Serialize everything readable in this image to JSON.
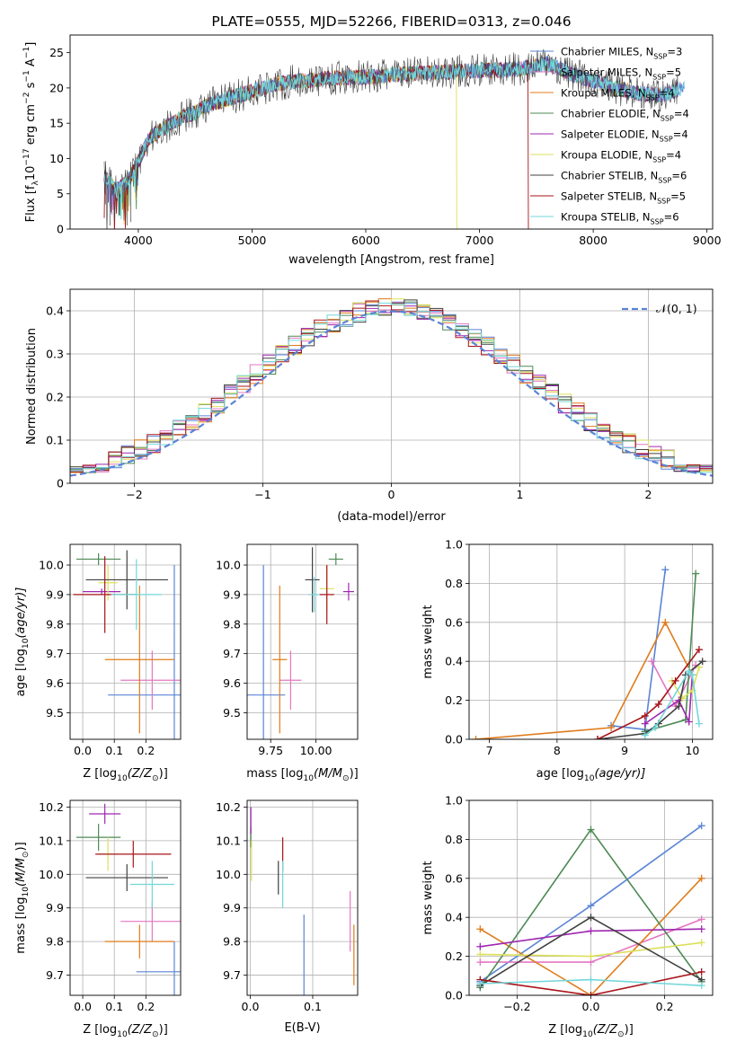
{
  "colors": {
    "Chabrier MILES": "#5b84d6",
    "Salpeter MILES": "#e377c2",
    "Kroupa MILES": "#e07b1a",
    "Chabrier ELODIE": "#4d8a55",
    "Salpeter ELODIE": "#9f27b0",
    "Kroupa ELODIE": "#dbe05a",
    "Chabrier STELIB": "#404040",
    "Salpeter STELIB": "#a8141a",
    "Kroupa STELIB": "#72d7d9"
  },
  "chart_data": [
    {
      "id": "spectrum",
      "type": "line",
      "title": "PLATE=0555, MJD=52266, FIBERID=0313, z=0.046",
      "xlabel": "wavelength [Angstrom, rest frame]",
      "ylabel_main": "Flux [f",
      "ylabel_sub": "λ",
      "ylabel_mid": "10",
      "ylabel_exp": "−17",
      "ylabel_rest": " erg cm",
      "ylabel_exp2": "−2",
      "ylabel_rest2": " s",
      "ylabel_exp3": "−1",
      "ylabel_rest3": " A",
      "ylabel_exp4": "−1",
      "ylabel_end": "]",
      "xlim": [
        3400,
        9050
      ],
      "ylim": [
        0,
        27.5
      ],
      "xticks": [
        4000,
        5000,
        6000,
        7000,
        8000,
        9000
      ],
      "yticks": [
        0,
        5,
        10,
        15,
        20,
        25
      ],
      "legend_position": "top-right",
      "legend": [
        {
          "name": "Chabrier MILES",
          "nssp": "3"
        },
        {
          "name": "Salpeter MILES",
          "nssp": "5"
        },
        {
          "name": "Kroupa MILES",
          "nssp": "4"
        },
        {
          "name": "Chabrier ELODIE",
          "nssp": "4"
        },
        {
          "name": "Salpeter ELODIE",
          "nssp": "4"
        },
        {
          "name": "Kroupa ELODIE",
          "nssp": "4"
        },
        {
          "name": "Chabrier STELIB",
          "nssp": "6"
        },
        {
          "name": "Salpeter STELIB",
          "nssp": "5"
        },
        {
          "name": "Kroupa STELIB",
          "nssp": "6"
        }
      ],
      "nssp_label": "N",
      "nssp_sub": "SSP",
      "continuum": {
        "x": [
          3700,
          3800,
          3900,
          4000,
          4100,
          4200,
          4300,
          4400,
          4500,
          4600,
          4700,
          4800,
          4900,
          5000,
          5200,
          5400,
          5600,
          5800,
          6000,
          6200,
          6400,
          6600,
          6800,
          7000,
          7200,
          7400,
          7600,
          7800,
          8000,
          8200,
          8400,
          8600,
          8800
        ],
        "y": [
          7.5,
          5.5,
          6.5,
          9.5,
          13,
          14,
          15,
          16,
          16.5,
          17.5,
          18,
          18.5,
          19,
          19.5,
          20.5,
          21,
          21.2,
          21.5,
          21.5,
          21.8,
          22,
          22.2,
          22.3,
          22.5,
          22.5,
          22.8,
          23.5,
          22,
          21,
          20,
          19.2,
          19,
          20
        ]
      },
      "dropouts": [
        {
          "series": "Kroupa ELODIE",
          "x": 6800,
          "from": 22.5,
          "to": 0,
          "endx": 6800
        },
        {
          "series": "Salpeter STELIB",
          "x": 7430,
          "from": 22.5,
          "to": 0,
          "endx": 7430
        }
      ],
      "low_dips": [
        {
          "x": 3710,
          "y": 3.5
        },
        {
          "x": 3750,
          "y": 0.5
        },
        {
          "x": 3830,
          "y": 2
        },
        {
          "x": 3900,
          "y": 0.5
        },
        {
          "x": 3935,
          "y": 1
        }
      ],
      "series_end": {
        "Salpeter STELIB": 7430,
        "Kroupa ELODIE": 6800,
        "Chabrier MILES": 8800,
        "Kroupa STELIB": 8800,
        "Salpeter MILES": 8800
      }
    },
    {
      "id": "residuals",
      "type": "histogram",
      "xlabel": "(data-model)/error",
      "ylabel": "Normed distribution",
      "xlim": [
        -2.5,
        2.5
      ],
      "ylim": [
        0,
        0.45
      ],
      "xticks": [
        -2,
        -1,
        0,
        1,
        2
      ],
      "yticks": [
        0,
        0.1,
        0.2,
        0.3,
        0.4
      ],
      "legend": "𝒩(0, 1)",
      "legend_position": "top-right",
      "bin_width": 0.1,
      "bin_start": -2.5
    },
    {
      "id": "age-vs-z",
      "type": "errorbar",
      "xlabel": "Z [log",
      "xlabel_sub": "10",
      "xlabel_mid": "(Z/Z",
      "xlabel_sub2": "⊙",
      "xlabel_end": ")]",
      "ylabel": "age  [log",
      "ylabel_sub": "10",
      "ylabel_end": "(age/yr)]",
      "xlim": [
        -0.04,
        0.31
      ],
      "ylim": [
        9.41,
        10.07
      ],
      "xticks": [
        0.0,
        0.1,
        0.2
      ],
      "xticklabels": [
        "0.0",
        "0.1",
        "0.2"
      ],
      "yticks": [
        9.5,
        9.6,
        9.7,
        9.8,
        9.9,
        10.0
      ],
      "yticklabels": [
        "9.5",
        "9.6",
        "9.7",
        "9.8",
        "9.9",
        "10.0"
      ],
      "points": [
        {
          "series": "Chabrier MILES",
          "x": 0.29,
          "y": 9.56,
          "xerr": 0.21,
          "yerr": 0.44
        },
        {
          "series": "Salpeter MILES",
          "x": 0.22,
          "y": 9.61,
          "xerr": 0.1,
          "yerr": 0.1
        },
        {
          "series": "Kroupa MILES",
          "x": 0.18,
          "y": 9.68,
          "xerr": 0.11,
          "yerr": 0.25
        },
        {
          "series": "Chabrier ELODIE",
          "x": 0.05,
          "y": 10.02,
          "xerr": 0.07,
          "yerr": 0.02
        },
        {
          "series": "Salpeter ELODIE",
          "x": 0.06,
          "y": 9.91,
          "xerr": 0.06,
          "yerr": 0.01
        },
        {
          "series": "Kroupa ELODIE",
          "x": 0.08,
          "y": 9.94,
          "xerr": 0.03,
          "yerr": 0.06
        },
        {
          "series": "Chabrier STELIB",
          "x": 0.14,
          "y": 9.95,
          "xerr": 0.13,
          "yerr": 0.1
        },
        {
          "series": "Salpeter STELIB",
          "x": 0.07,
          "y": 9.9,
          "xerr": 0.1,
          "yerr": 0.13
        },
        {
          "series": "Kroupa STELIB",
          "x": 0.17,
          "y": 9.9,
          "xerr": 0.08,
          "yerr": 0.12
        }
      ]
    },
    {
      "id": "age-vs-mass",
      "type": "errorbar",
      "xlabel": "mass [log",
      "xlabel_sub": "10",
      "xlabel_mid": "(M/M",
      "xlabel_sub2": "⊙",
      "xlabel_end": ")]",
      "xlim": [
        9.62,
        10.23
      ],
      "ylim": [
        9.41,
        10.07
      ],
      "xticks": [
        9.75,
        10.0
      ],
      "xticklabels": [
        "9.75",
        "10.00"
      ],
      "yticks": [
        9.5,
        9.6,
        9.7,
        9.8,
        9.9,
        10.0
      ],
      "yticklabels": [
        "9.5",
        "9.6",
        "9.7",
        "9.8",
        "9.9",
        "10.0"
      ],
      "points": [
        {
          "series": "Chabrier MILES",
          "x": 9.71,
          "y": 9.56,
          "xerr": 0.12,
          "yerr": 0.44
        },
        {
          "series": "Salpeter MILES",
          "x": 9.86,
          "y": 9.61,
          "xerr": 0.06,
          "yerr": 0.1
        },
        {
          "series": "Kroupa MILES",
          "x": 9.8,
          "y": 9.68,
          "xerr": 0.04,
          "yerr": 0.25
        },
        {
          "series": "Chabrier ELODIE",
          "x": 10.11,
          "y": 10.02,
          "xerr": 0.04,
          "yerr": 0.02
        },
        {
          "series": "Salpeter ELODIE",
          "x": 10.18,
          "y": 9.91,
          "xerr": 0.03,
          "yerr": 0.03
        },
        {
          "series": "Kroupa ELODIE",
          "x": 10.06,
          "y": 9.92,
          "xerr": 0.04,
          "yerr": 0.08
        },
        {
          "series": "Chabrier STELIB",
          "x": 9.98,
          "y": 9.95,
          "xerr": 0.04,
          "yerr": 0.11
        },
        {
          "series": "Salpeter STELIB",
          "x": 10.06,
          "y": 9.9,
          "xerr": 0.04,
          "yerr": 0.1
        },
        {
          "series": "Kroupa STELIB",
          "x": 9.99,
          "y": 9.9,
          "xerr": 0.03,
          "yerr": 0.06
        }
      ]
    },
    {
      "id": "mass-weight-vs-age",
      "type": "line",
      "xlabel": "age  [log",
      "xlabel_sub": "10",
      "xlabel_end": "(age/yr)]",
      "ylabel": "mass weight",
      "xlim": [
        6.7,
        10.3
      ],
      "ylim": [
        0,
        1
      ],
      "xticks": [
        7,
        8,
        9,
        10
      ],
      "xticklabels": [
        "7",
        "8",
        "9",
        "10"
      ],
      "yticks": [
        0,
        0.2,
        0.4,
        0.6,
        0.8,
        1.0
      ],
      "yticklabels": [
        "0.0",
        "0.2",
        "0.4",
        "0.6",
        "0.8",
        "1.0"
      ],
      "series": [
        {
          "name": "Chabrier MILES",
          "x": [
            8.8,
            9.3,
            9.6
          ],
          "y": [
            0.07,
            0.05,
            0.87
          ]
        },
        {
          "name": "Salpeter MILES",
          "x": [
            9.4,
            9.75,
            10.05
          ],
          "y": [
            0.4,
            0.17,
            0.38
          ]
        },
        {
          "name": "Kroupa MILES",
          "x": [
            6.8,
            8.8,
            9.6,
            10.0
          ],
          "y": [
            0.0,
            0.06,
            0.6,
            0.33
          ]
        },
        {
          "name": "Chabrier ELODIE",
          "x": [
            9.3,
            9.9,
            10.05
          ],
          "y": [
            0.04,
            0.1,
            0.85
          ]
        },
        {
          "name": "Salpeter ELODIE",
          "x": [
            9.3,
            9.8,
            9.95,
            10.0
          ],
          "y": [
            0.08,
            0.2,
            0.09,
            0.33
          ]
        },
        {
          "name": "Kroupa ELODIE",
          "x": [
            9.7,
            9.85,
            10.0,
            10.1
          ],
          "y": [
            0.3,
            0.21,
            0.25,
            0.37
          ]
        },
        {
          "name": "Chabrier STELIB",
          "x": [
            8.6,
            9.3,
            9.5,
            9.8,
            9.9,
            10.15
          ],
          "y": [
            0.0,
            0.03,
            0.08,
            0.17,
            0.33,
            0.4
          ]
        },
        {
          "name": "Salpeter STELIB",
          "x": [
            8.6,
            9.3,
            9.5,
            9.75,
            10.1
          ],
          "y": [
            0.0,
            0.12,
            0.18,
            0.3,
            0.46
          ]
        },
        {
          "name": "Kroupa STELIB",
          "x": [
            9.3,
            9.45,
            9.95,
            10.0,
            10.1
          ],
          "y": [
            0.02,
            0.06,
            0.35,
            0.33,
            0.08
          ]
        }
      ]
    },
    {
      "id": "mass-vs-z",
      "type": "errorbar",
      "xlabel": "Z [log",
      "xlabel_sub": "10",
      "xlabel_mid": "(Z/Z",
      "xlabel_sub2": "⊙",
      "xlabel_end": ")]",
      "ylabel": "mass [log",
      "ylabel_sub": "10",
      "ylabel_mid": "(M/M",
      "ylabel_sub2": "⊙",
      "ylabel_end": ")]",
      "xlim": [
        -0.04,
        0.31
      ],
      "ylim": [
        9.64,
        10.22
      ],
      "xticks": [
        0.0,
        0.1,
        0.2
      ],
      "xticklabels": [
        "0.0",
        "0.1",
        "0.2"
      ],
      "yticks": [
        9.7,
        9.8,
        9.9,
        10.0,
        10.1,
        10.2
      ],
      "yticklabels": [
        "9.7",
        "9.8",
        "9.9",
        "10.0",
        "10.1",
        "10.2"
      ],
      "points": [
        {
          "series": "Chabrier MILES",
          "x": 0.29,
          "y": 9.71,
          "xerr": 0.12,
          "yerr": 0.09
        },
        {
          "series": "Salpeter MILES",
          "x": 0.22,
          "y": 9.86,
          "xerr": 0.1,
          "yerr": 0.06
        },
        {
          "series": "Kroupa MILES",
          "x": 0.18,
          "y": 9.8,
          "xerr": 0.11,
          "yerr": 0.05
        },
        {
          "series": "Chabrier ELODIE",
          "x": 0.05,
          "y": 10.11,
          "xerr": 0.07,
          "yerr": 0.04
        },
        {
          "series": "Salpeter ELODIE",
          "x": 0.07,
          "y": 10.18,
          "xerr": 0.05,
          "yerr": 0.03
        },
        {
          "series": "Kroupa ELODIE",
          "x": 0.08,
          "y": 10.06,
          "xerr": 0.03,
          "yerr": 0.05
        },
        {
          "series": "Chabrier STELIB",
          "x": 0.14,
          "y": 9.99,
          "xerr": 0.13,
          "yerr": 0.04
        },
        {
          "series": "Salpeter STELIB",
          "x": 0.16,
          "y": 10.06,
          "xerr": 0.12,
          "yerr": 0.04
        },
        {
          "series": "Kroupa STELIB",
          "x": 0.22,
          "y": 9.97,
          "xerr": 0.07,
          "yerr": 0.07
        }
      ]
    },
    {
      "id": "mass-vs-ebv",
      "type": "errorbar",
      "xlabel": "E(B-V)",
      "xlim": [
        -0.005,
        0.172
      ],
      "ylim": [
        9.64,
        10.22
      ],
      "xticks": [
        0.0,
        0.1
      ],
      "xticklabels": [
        "0.0",
        "0.1"
      ],
      "yticks": [
        9.7,
        9.8,
        9.9,
        10.0,
        10.1,
        10.2
      ],
      "yticklabels": [
        "9.7",
        "9.8",
        "9.9",
        "10.0",
        "10.1",
        "10.2"
      ],
      "points": [
        {
          "series": "Chabrier MILES",
          "x": 0.086,
          "y": 9.75,
          "xerr": 0.0,
          "yerr": 0.13
        },
        {
          "series": "Salpeter MILES",
          "x": 0.16,
          "y": 9.86,
          "xerr": 0.0,
          "yerr": 0.09
        },
        {
          "series": "Kroupa MILES",
          "x": 0.166,
          "y": 9.76,
          "xerr": 0.0,
          "yerr": 0.09
        },
        {
          "series": "Chabrier ELODIE",
          "x": 0.001,
          "y": 10.11,
          "xerr": 0.0,
          "yerr": 0.03
        },
        {
          "series": "Salpeter ELODIE",
          "x": 0.001,
          "y": 10.16,
          "xerr": 0.0,
          "yerr": 0.04
        },
        {
          "series": "Kroupa ELODIE",
          "x": 0.002,
          "y": 10.04,
          "xerr": 0.0,
          "yerr": 0.06
        },
        {
          "series": "Chabrier STELIB",
          "x": 0.045,
          "y": 9.99,
          "xerr": 0.0,
          "yerr": 0.05
        },
        {
          "series": "Salpeter STELIB",
          "x": 0.052,
          "y": 10.06,
          "xerr": 0.0,
          "yerr": 0.05
        },
        {
          "series": "Kroupa STELIB",
          "x": 0.052,
          "y": 9.97,
          "xerr": 0.0,
          "yerr": 0.07
        }
      ]
    },
    {
      "id": "mass-weight-vs-z",
      "type": "line",
      "xlabel": "Z [log",
      "xlabel_sub": "10",
      "xlabel_mid": "(Z/Z",
      "xlabel_sub2": "⊙",
      "xlabel_end": ")]",
      "ylabel": "mass weight",
      "xlim": [
        -0.33,
        0.33
      ],
      "ylim": [
        0,
        1
      ],
      "xticks": [
        -0.2,
        0.0,
        0.2
      ],
      "xticklabels": [
        "−0.2",
        "0.0",
        "0.2"
      ],
      "yticks": [
        0,
        0.2,
        0.4,
        0.6,
        0.8,
        1.0
      ],
      "yticklabels": [
        "0.0",
        "0.2",
        "0.4",
        "0.6",
        "0.8",
        "1.0"
      ],
      "series": [
        {
          "name": "Chabrier MILES",
          "x": [
            -0.3,
            0.0,
            0.3
          ],
          "y": [
            0.07,
            0.46,
            0.87
          ]
        },
        {
          "name": "Salpeter MILES",
          "x": [
            -0.3,
            0.0,
            0.3
          ],
          "y": [
            0.17,
            0.17,
            0.39
          ]
        },
        {
          "name": "Kroupa MILES",
          "x": [
            -0.3,
            0.0,
            0.3
          ],
          "y": [
            0.34,
            0.0,
            0.6
          ]
        },
        {
          "name": "Chabrier ELODIE",
          "x": [
            -0.3,
            0.0,
            0.3
          ],
          "y": [
            0.04,
            0.85,
            0.07
          ]
        },
        {
          "name": "Salpeter ELODIE",
          "x": [
            -0.3,
            0.0,
            0.3
          ],
          "y": [
            0.25,
            0.33,
            0.34
          ]
        },
        {
          "name": "Kroupa ELODIE",
          "x": [
            -0.3,
            0.0,
            0.3
          ],
          "y": [
            0.21,
            0.2,
            0.27
          ]
        },
        {
          "name": "Chabrier STELIB",
          "x": [
            -0.3,
            0.0,
            0.3
          ],
          "y": [
            0.05,
            0.4,
            0.08
          ]
        },
        {
          "name": "Salpeter STELIB",
          "x": [
            -0.3,
            0.0,
            0.3
          ],
          "y": [
            0.08,
            0.0,
            0.12
          ]
        },
        {
          "name": "Kroupa STELIB",
          "x": [
            -0.3,
            0.0,
            0.3
          ],
          "y": [
            0.06,
            0.08,
            0.05
          ]
        }
      ]
    }
  ]
}
